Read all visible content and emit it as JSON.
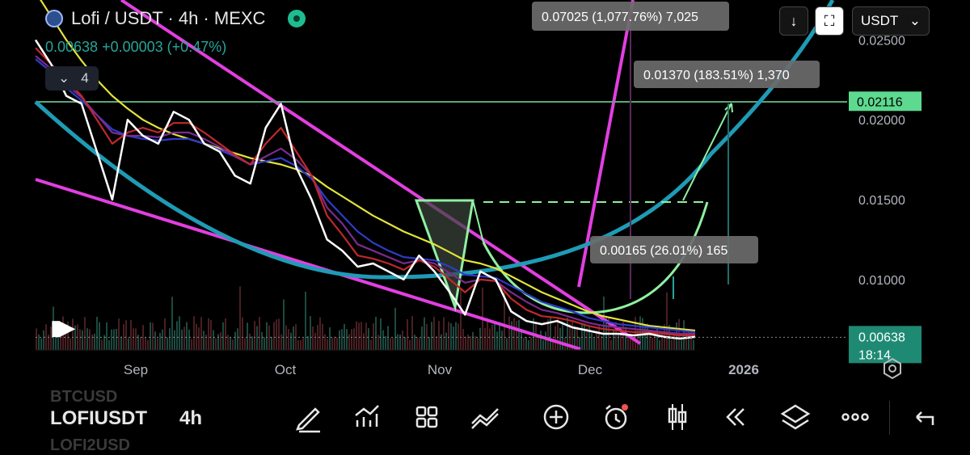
{
  "header": {
    "symbol_line": "Lofi / USDT · 4h · MEXC",
    "last_price": "0.00638",
    "change": "+0.00003 (+0.47%)",
    "indicators_count": "4"
  },
  "toolbar_top": {
    "currency": "USDT"
  },
  "colors": {
    "background": "#000000",
    "up": "#26a69a",
    "down": "#ef5350",
    "ma_yellow": "#e3e33b",
    "ma_blue": "#2e3cc7",
    "ma_purple": "#7b2b8f",
    "ma_red": "#c0282b",
    "price_white": "#ffffff",
    "trend_magenta": "#e23fe0",
    "curve_teal": "#1f9bb5",
    "pattern_green": "#8ff0a0",
    "level_line": "#5aa67a"
  },
  "chart_data": {
    "type": "line",
    "title": "",
    "xlabel": "",
    "ylabel": "",
    "x_ticks": [
      "Sep",
      "Oct",
      "Nov",
      "Dec",
      "2026"
    ],
    "y_ticks": [
      0.025,
      0.02,
      0.015,
      0.01
    ],
    "y_tick_labels": [
      "0.02500",
      "0.02000",
      "0.01500",
      "0.01000"
    ],
    "ylim": [
      0.0025,
      0.0275
    ],
    "x": [
      0,
      20,
      40,
      60,
      80,
      100,
      120,
      140,
      160,
      180,
      200,
      220,
      240,
      260,
      280,
      300,
      320,
      340,
      360,
      380,
      400,
      420,
      440,
      460,
      480,
      500,
      520,
      540,
      560,
      580,
      600,
      620,
      640,
      660,
      680,
      700,
      720,
      740,
      760,
      780,
      800,
      820,
      840,
      860
    ],
    "series": [
      {
        "values": [
          0.025,
          0.0235,
          0.0215,
          0.021,
          0.018,
          0.015,
          0.02,
          0.019,
          0.0185,
          0.0205,
          0.02,
          0.0185,
          0.018,
          0.0165,
          0.016,
          0.0195,
          0.021,
          0.017,
          0.015,
          0.0125,
          0.0118,
          0.0108,
          0.011,
          0.0105,
          0.01,
          0.0115,
          0.0105,
          0.0092,
          0.0078,
          0.0105,
          0.01,
          0.008,
          0.0074,
          0.0072,
          0.0074,
          0.007,
          0.0068,
          0.0066,
          0.0066,
          0.0065,
          0.0066,
          0.0064,
          0.0063,
          0.0064
        ]
      },
      {
        "values": [
          0.0245,
          0.0235,
          0.0225,
          0.0215,
          0.02,
          0.0185,
          0.0192,
          0.0195,
          0.0192,
          0.0198,
          0.0198,
          0.0192,
          0.0185,
          0.0178,
          0.0172,
          0.0185,
          0.0195,
          0.018,
          0.0165,
          0.014,
          0.0128,
          0.0115,
          0.0113,
          0.011,
          0.0106,
          0.0112,
          0.0108,
          0.01,
          0.0092,
          0.01,
          0.0099,
          0.0088,
          0.0081,
          0.0077,
          0.0076,
          0.0074,
          0.0071,
          0.0069,
          0.0068,
          0.0067,
          0.0067,
          0.0066,
          0.0065,
          0.0065
        ]
      },
      {
        "values": [
          0.024,
          0.0232,
          0.0222,
          0.0214,
          0.0203,
          0.0192,
          0.019,
          0.019,
          0.0189,
          0.0192,
          0.0192,
          0.0188,
          0.0183,
          0.0177,
          0.0172,
          0.0177,
          0.0182,
          0.0175,
          0.0165,
          0.0145,
          0.0135,
          0.0122,
          0.0118,
          0.0114,
          0.011,
          0.0112,
          0.011,
          0.0104,
          0.0098,
          0.01,
          0.0099,
          0.0092,
          0.0086,
          0.0081,
          0.0079,
          0.0076,
          0.0073,
          0.0071,
          0.007,
          0.0069,
          0.0068,
          0.0067,
          0.0066,
          0.0066
        ]
      },
      {
        "values": [
          0.0238,
          0.023,
          0.022,
          0.0212,
          0.0203,
          0.0194,
          0.019,
          0.0188,
          0.0187,
          0.0188,
          0.0188,
          0.0185,
          0.0181,
          0.0177,
          0.0172,
          0.0174,
          0.0176,
          0.0171,
          0.0163,
          0.015,
          0.014,
          0.013,
          0.0123,
          0.0118,
          0.0114,
          0.0113,
          0.0112,
          0.0108,
          0.0103,
          0.0102,
          0.0101,
          0.0096,
          0.0091,
          0.0086,
          0.0083,
          0.008,
          0.0076,
          0.0074,
          0.0072,
          0.0071,
          0.007,
          0.0069,
          0.0068,
          0.0067
        ]
      },
      {
        "values": [
          0.028,
          0.0265,
          0.025,
          0.0237,
          0.0225,
          0.0215,
          0.0207,
          0.02,
          0.0195,
          0.0191,
          0.0188,
          0.0185,
          0.0182,
          0.0179,
          0.0176,
          0.0174,
          0.0172,
          0.0169,
          0.0165,
          0.0158,
          0.0152,
          0.0146,
          0.014,
          0.0135,
          0.013,
          0.0126,
          0.0122,
          0.0117,
          0.0112,
          0.011,
          0.0107,
          0.0102,
          0.0097,
          0.0092,
          0.0088,
          0.0084,
          0.008,
          0.0077,
          0.0075,
          0.0073,
          0.0071,
          0.007,
          0.0069,
          0.0068
        ]
      }
    ],
    "horizontal_level": "0.02116",
    "current_price": "0.00638",
    "countdown": "18:14",
    "annotations": [
      "0.07025 (1,077.76%) 7,025",
      "0.01370 (183.51%) 1,370",
      "0.00165 (26.01%) 165"
    ],
    "grid": false,
    "legend": "none"
  },
  "bottom_toolbar": {
    "symbol_above": "BTCUSD",
    "symbol_current": "LOFIUSDT",
    "symbol_below": "LOFI2USD",
    "timeframe": "4h"
  }
}
